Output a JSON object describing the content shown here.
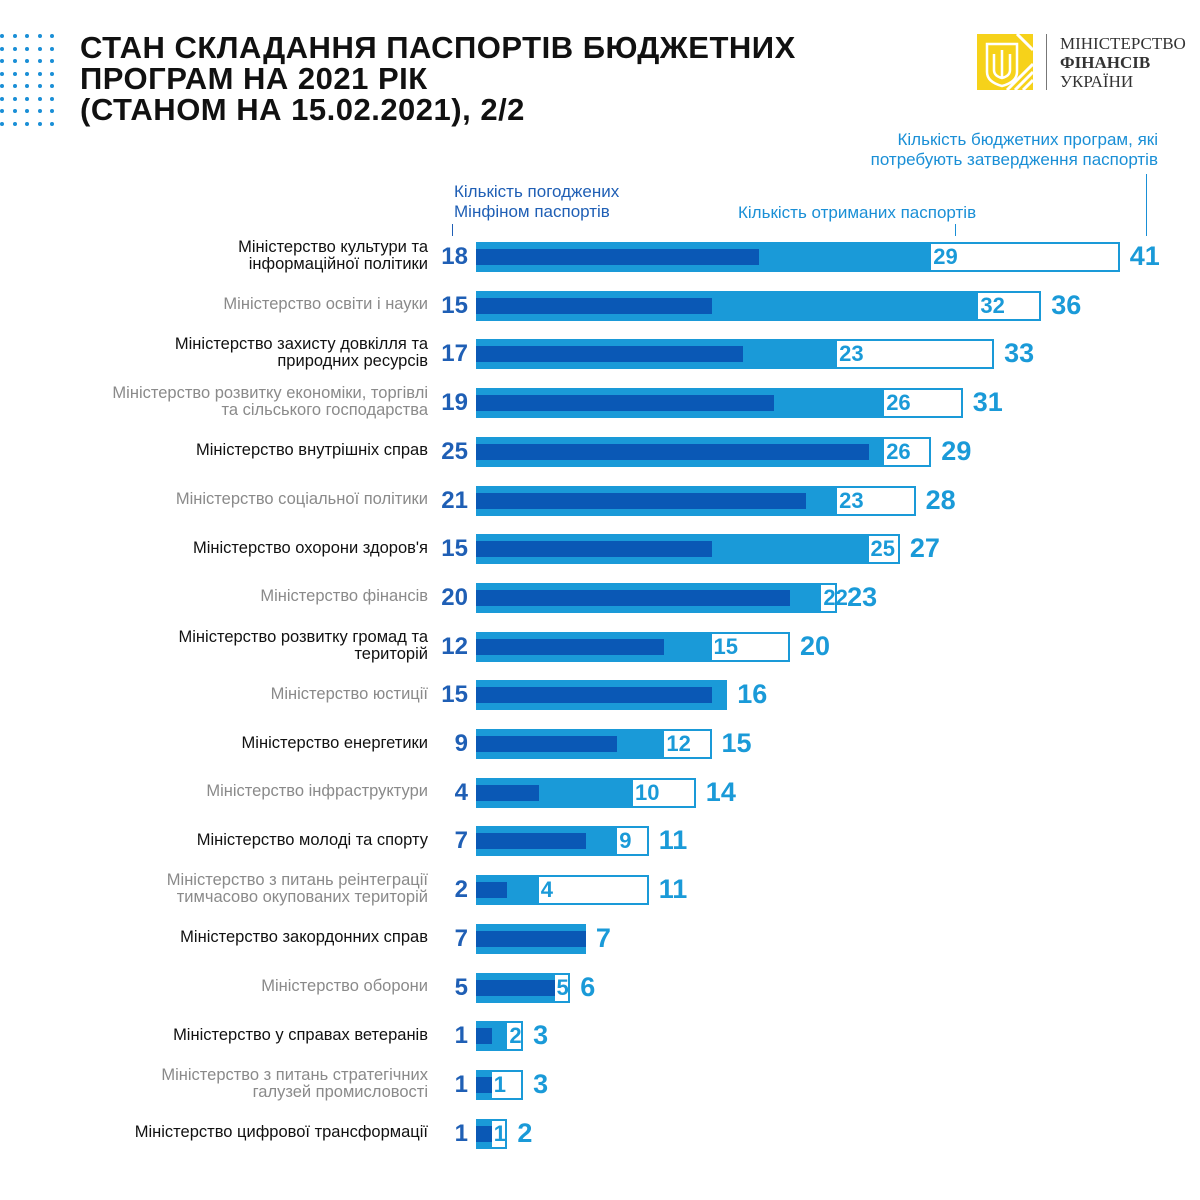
{
  "header": {
    "title_lines": [
      "СТАН СКЛАДАННЯ ПАСПОРТІВ БЮДЖЕТНИХ",
      "ПРОГРАМ НА 2021 РІК",
      "(СТАНОМ НА 15.02.2021), 2/2"
    ],
    "logo": {
      "icon": "trident-emblem-icon",
      "line1": "МІНІСТЕРСТВО",
      "line2": "ФІНАНСІВ",
      "line3": "УКРАЇНИ"
    }
  },
  "colors": {
    "agreed": "#0a58b5",
    "received": "#1a9ad8",
    "total_outline": "#1a9ad8",
    "logo_yellow": "#f6d21a"
  },
  "chart_data": {
    "type": "bar",
    "orientation": "horizontal",
    "title": "Стан складання паспортів бюджетних програм на 2021 рік (станом на 15.02.2021), 2/2",
    "legend": {
      "agreed": "Кількість погоджених Мінфіном паспортів",
      "received": "Кількість отриманих паспортів",
      "total": "Кількість бюджетних програм, які потребують затвердження паспортів"
    },
    "legend_lines": {
      "agreed": [
        "Кількість погоджених",
        "Мінфіном паспортів"
      ],
      "received": [
        "Кількість отриманих паспортів"
      ],
      "total": [
        "Кількість бюджетних програм, які",
        "потребують затвердження паспортів"
      ]
    },
    "xlim": [
      0,
      41
    ],
    "grid": false,
    "categories": [
      [
        "Міністерство культури та",
        "інформаційної політики"
      ],
      [
        "Міністерство освіти і науки"
      ],
      [
        "Міністерство захисту довкілля та",
        "природних ресурсів"
      ],
      [
        "Міністерство розвитку економіки, торгівлі",
        "та сільського господарства"
      ],
      [
        "Міністерство внутрішніх справ"
      ],
      [
        "Міністерство соціальної політики"
      ],
      [
        "Міністерство охорони здоров'я"
      ],
      [
        "Міністерство фінансів"
      ],
      [
        "Міністерство розвитку громад та",
        "територій"
      ],
      [
        "Міністерство юстиції"
      ],
      [
        "Міністерство енергетики"
      ],
      [
        "Міністерство інфраструктури"
      ],
      [
        "Міністерство молоді та спорту"
      ],
      [
        "Міністерство з питань  реінтеграції",
        "тимчасово окупованих територій"
      ],
      [
        "Міністерство закордонних справ"
      ],
      [
        "Міністерство оборони"
      ],
      [
        "Міністерство у справах ветеранів"
      ],
      [
        "Міністерство з питань стратегічних",
        "галузей промисловості"
      ],
      [
        "Міністерство цифрової трансформації"
      ]
    ],
    "series": [
      {
        "name": "agreed",
        "values": [
          18,
          15,
          17,
          19,
          25,
          21,
          15,
          20,
          12,
          15,
          9,
          4,
          7,
          2,
          7,
          5,
          1,
          1,
          1
        ]
      },
      {
        "name": "received",
        "values": [
          29,
          32,
          23,
          26,
          26,
          23,
          25,
          22,
          15,
          16,
          12,
          10,
          9,
          4,
          7,
          5,
          2,
          1,
          1
        ]
      },
      {
        "name": "total",
        "values": [
          41,
          36,
          33,
          31,
          29,
          28,
          27,
          23,
          20,
          16,
          15,
          14,
          11,
          11,
          7,
          6,
          3,
          3,
          2
        ]
      }
    ],
    "received_label_shown": [
      true,
      true,
      true,
      true,
      true,
      true,
      true,
      true,
      true,
      false,
      true,
      true,
      true,
      true,
      false,
      true,
      true,
      true,
      true
    ]
  }
}
